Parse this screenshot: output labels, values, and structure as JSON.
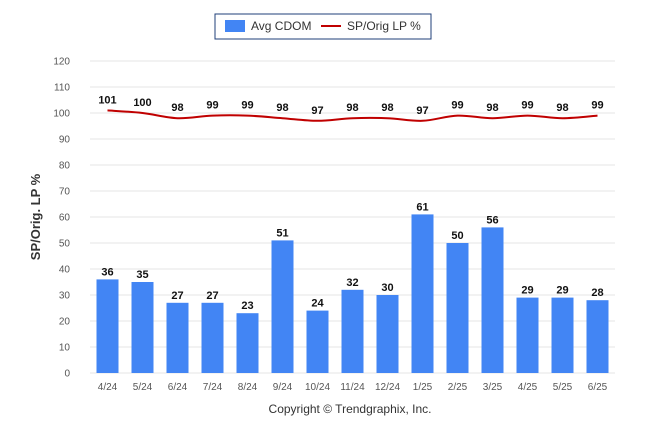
{
  "chart_data": {
    "type": "bar",
    "title": "",
    "ylabel": "SP/Orig. LP %",
    "xlabel": "",
    "ylim": [
      0,
      120
    ],
    "yticks": [
      0,
      10,
      20,
      30,
      40,
      50,
      60,
      70,
      80,
      90,
      100,
      110,
      120
    ],
    "grid": true,
    "legend_position": "top-center",
    "categories": [
      "4/24",
      "5/24",
      "6/24",
      "7/24",
      "8/24",
      "9/24",
      "10/24",
      "11/24",
      "12/24",
      "1/25",
      "2/25",
      "3/25",
      "4/25",
      "5/25",
      "6/25"
    ],
    "series": [
      {
        "name": "Avg CDOM",
        "type": "bar",
        "color": "#4285f4",
        "values": [
          36,
          35,
          27,
          27,
          23,
          51,
          24,
          32,
          30,
          61,
          50,
          56,
          29,
          29,
          28
        ]
      },
      {
        "name": "SP/Orig LP %",
        "type": "line",
        "color": "#c00000",
        "values": [
          101,
          100,
          98,
          99,
          99,
          98,
          97,
          98,
          98,
          97,
          99,
          98,
          99,
          98,
          99
        ]
      }
    ]
  },
  "footer": {
    "copyright": "Copyright © Trendgraphix, Inc."
  }
}
